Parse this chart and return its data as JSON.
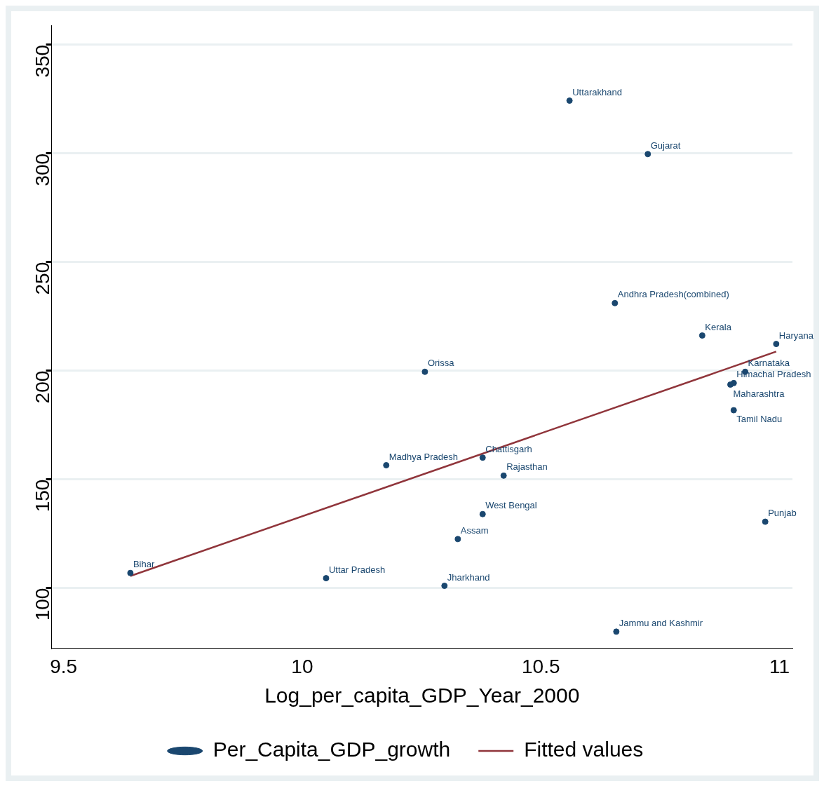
{
  "chart_data": {
    "type": "scatter",
    "xlabel": "Log_per_capita_GDP_Year_2000",
    "xlim": [
      9.475,
      11.027
    ],
    "xticks": [
      9.5,
      10,
      10.5,
      11
    ],
    "ylim": [
      72.3,
      359
    ],
    "yticks": [
      100,
      150,
      200,
      250,
      300,
      350
    ],
    "grid": "y",
    "legend": "bottom",
    "marker": "circle",
    "series": [
      {
        "name": "Per_Capita_GDP_growth",
        "color": "#1a476f",
        "x": [
          10.56,
          10.724,
          10.655,
          10.838,
          10.993,
          10.257,
          10.928,
          10.904,
          10.897,
          10.904,
          10.176,
          10.378,
          10.422,
          10.378,
          10.326,
          10.97,
          9.64,
          10.05,
          10.298,
          10.658
        ],
        "values": [
          324.3,
          299.7,
          231.1,
          216.2,
          212.3,
          199.5,
          199.5,
          194.3,
          193.6,
          181.8,
          156.5,
          160.0,
          151.7,
          134.0,
          122.5,
          130.5,
          106.9,
          104.5,
          101.0,
          79.9
        ]
      },
      {
        "name": "Fitted values",
        "type": "line",
        "marker": "none",
        "color": "#90353b",
        "x": [
          9.64,
          10.993
        ],
        "values": [
          105.5,
          208.8
        ]
      }
    ],
    "annotations": [
      {
        "text": "Uttarakhand",
        "x": 10.56,
        "y": 324.3
      },
      {
        "text": "Gujarat",
        "x": 10.724,
        "y": 299.7
      },
      {
        "text": "Andhra Pradesh(combined)",
        "x": 10.655,
        "y": 231.1
      },
      {
        "text": "Kerala",
        "x": 10.838,
        "y": 216.2
      },
      {
        "text": "Haryana",
        "x": 10.993,
        "y": 212.3
      },
      {
        "text": "Orissa",
        "x": 10.257,
        "y": 199.5
      },
      {
        "text": "Karnataka",
        "x": 10.928,
        "y": 199.5
      },
      {
        "text": "Himachal Pradesh",
        "x": 10.904,
        "y": 194.3
      },
      {
        "text": "Maharashtra",
        "x": 10.897,
        "y": 193.6
      },
      {
        "text": "Tamil Nadu",
        "x": 10.904,
        "y": 181.8
      },
      {
        "text": "Madhya Pradesh",
        "x": 10.176,
        "y": 156.5
      },
      {
        "text": "Chattisgarh",
        "x": 10.378,
        "y": 160.0
      },
      {
        "text": "Rajasthan",
        "x": 10.422,
        "y": 151.7
      },
      {
        "text": "West Bengal",
        "x": 10.378,
        "y": 134.0
      },
      {
        "text": "Assam",
        "x": 10.326,
        "y": 122.5
      },
      {
        "text": "Punjab",
        "x": 10.97,
        "y": 130.5
      },
      {
        "text": "Bihar",
        "x": 9.64,
        "y": 106.9
      },
      {
        "text": "Uttar Pradesh",
        "x": 10.05,
        "y": 104.5
      },
      {
        "text": "Jharkhand",
        "x": 10.298,
        "y": 101.0
      },
      {
        "text": "Jammu and Kashmir",
        "x": 10.658,
        "y": 79.9
      }
    ]
  }
}
